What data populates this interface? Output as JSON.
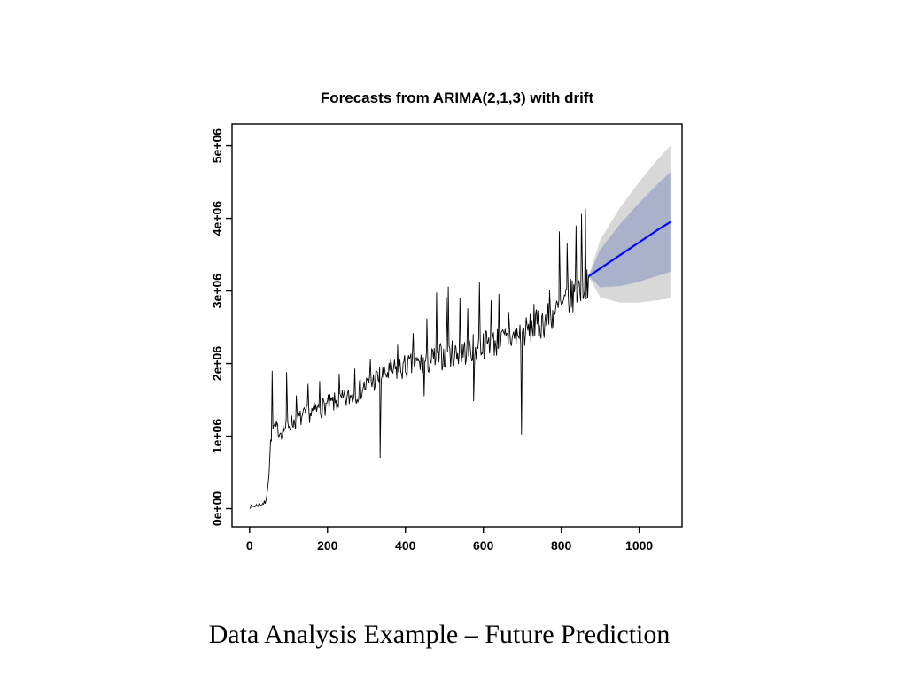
{
  "slide": {
    "caption": "Data Analysis Example – Future Prediction"
  },
  "chart_data": {
    "type": "line",
    "title": "Forecasts from ARIMA(2,1,3) with drift",
    "xlabel": "",
    "ylabel": "",
    "grid": false,
    "legend": "none",
    "xlim": [
      -45,
      1110
    ],
    "ylim": [
      -250000,
      5300000
    ],
    "x_ticks": [
      0,
      200,
      400,
      600,
      800,
      1000
    ],
    "y_ticks": [
      {
        "value": 0,
        "label": "0e+00"
      },
      {
        "value": 1000000,
        "label": "1e+06"
      },
      {
        "value": 2000000,
        "label": "2e+06"
      },
      {
        "value": 3000000,
        "label": "3e+06"
      },
      {
        "value": 4000000,
        "label": "4e+06"
      },
      {
        "value": 5000000,
        "label": "5e+06"
      }
    ],
    "colors": {
      "background": "#FFFFFF",
      "history_line": "#000000",
      "forecast_line": "#0000FF",
      "band_80": "#A9B1CB",
      "band_95": "#D8D8D8",
      "frame": "#000000",
      "text": "#000000"
    },
    "history": {
      "x_range": [
        0,
        870
      ],
      "trend_points": [
        [
          0,
          20000
        ],
        [
          15,
          40000
        ],
        [
          30,
          60000
        ],
        [
          42,
          90000
        ],
        [
          50,
          500000
        ],
        [
          55,
          1000000
        ],
        [
          62,
          1120000
        ],
        [
          80,
          1060000
        ],
        [
          100,
          1160000
        ],
        [
          150,
          1300000
        ],
        [
          200,
          1430000
        ],
        [
          250,
          1510000
        ],
        [
          300,
          1700000
        ],
        [
          350,
          1860000
        ],
        [
          400,
          1950000
        ],
        [
          450,
          2010000
        ],
        [
          500,
          2110000
        ],
        [
          550,
          2160000
        ],
        [
          600,
          2260000
        ],
        [
          650,
          2310000
        ],
        [
          700,
          2410000
        ],
        [
          750,
          2560000
        ],
        [
          800,
          2760000
        ],
        [
          840,
          3010000
        ],
        [
          870,
          3200000
        ]
      ],
      "noise": {
        "seed": 7,
        "step": 2,
        "base_amplitude": 25000,
        "amplitude_slope": 0.08
      },
      "spikes": [
        [
          58,
          1900000
        ],
        [
          95,
          1880000
        ],
        [
          120,
          1560000
        ],
        [
          150,
          1720000
        ],
        [
          180,
          1760000
        ],
        [
          230,
          1860000
        ],
        [
          270,
          1930000
        ],
        [
          310,
          2060000
        ],
        [
          335,
          700000
        ],
        [
          345,
          1980000
        ],
        [
          380,
          2260000
        ],
        [
          420,
          2420000
        ],
        [
          448,
          1550000
        ],
        [
          455,
          2620000
        ],
        [
          480,
          2980000
        ],
        [
          505,
          2920000
        ],
        [
          510,
          3060000
        ],
        [
          540,
          2900000
        ],
        [
          560,
          2760000
        ],
        [
          575,
          1480000
        ],
        [
          590,
          3120000
        ],
        [
          620,
          2870000
        ],
        [
          640,
          2960000
        ],
        [
          665,
          2710000
        ],
        [
          698,
          1020000
        ],
        [
          730,
          2820000
        ],
        [
          770,
          3010000
        ],
        [
          795,
          3820000
        ],
        [
          815,
          3660000
        ],
        [
          838,
          3900000
        ],
        [
          852,
          4060000
        ],
        [
          862,
          4130000
        ]
      ]
    },
    "forecast": {
      "levels": [
        80,
        95
      ],
      "x": [
        870,
        900,
        950,
        1000,
        1050,
        1080
      ],
      "mean": [
        3200000,
        3310000,
        3490000,
        3670000,
        3850000,
        3950000
      ],
      "lower80": [
        3200000,
        3050000,
        3065000,
        3126000,
        3212000,
        3263000
      ],
      "upper80": [
        3200000,
        3570000,
        3915000,
        4214000,
        4488000,
        4637000
      ],
      "lower95": [
        3200000,
        2913000,
        2841000,
        2838000,
        2874000,
        2900000
      ],
      "upper95": [
        3200000,
        3707000,
        4139000,
        4502000,
        4826000,
        5000000
      ]
    }
  }
}
